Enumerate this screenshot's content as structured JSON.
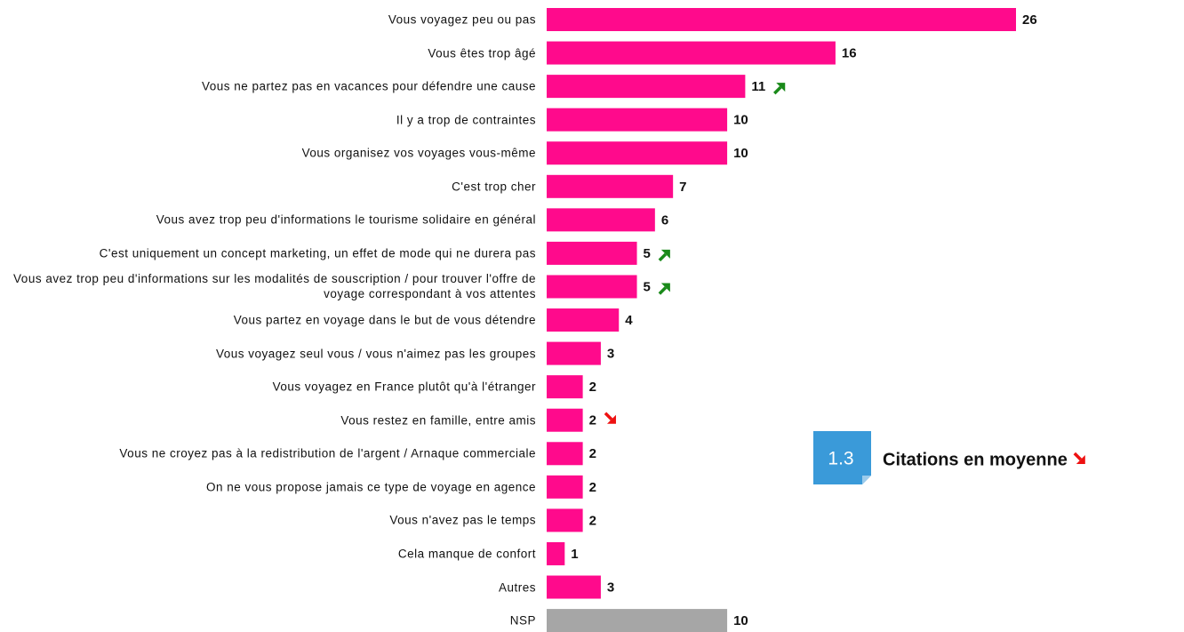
{
  "chart_data": {
    "type": "bar",
    "orientation": "horizontal",
    "categories": [
      "Vous voyagez peu ou pas",
      "Vous êtes trop âgé",
      "Vous ne partez pas en vacances pour défendre une cause",
      "Il y a trop de contraintes",
      "Vous organisez vos voyages vous-même",
      "C'est trop cher",
      "Vous avez trop peu d'informations le tourisme solidaire en général",
      "C'est uniquement un concept marketing, un effet de mode qui ne durera pas",
      "Vous avez trop peu d'informations sur les modalités de souscription / pour trouver l'offre de voyage correspondant à vos attentes",
      "Vous partez en voyage dans le but de vous détendre",
      "Vous voyagez seul vous / vous n'aimez pas les groupes",
      "Vous voyagez en France plutôt qu'à l'étranger",
      "Vous restez en famille, entre amis",
      "Vous ne croyez pas à la redistribution de l'argent / Arnaque commerciale",
      "On ne vous propose jamais ce type de voyage en agence",
      "Vous n'avez pas le temps",
      "Cela manque de confort",
      "Autres",
      "NSP"
    ],
    "values": [
      26,
      16,
      11,
      10,
      10,
      7,
      6,
      5,
      5,
      4,
      3,
      2,
      2,
      2,
      2,
      2,
      1,
      3,
      10
    ],
    "colors": [
      "#ff0a8c",
      "#ff0a8c",
      "#ff0a8c",
      "#ff0a8c",
      "#ff0a8c",
      "#ff0a8c",
      "#ff0a8c",
      "#ff0a8c",
      "#ff0a8c",
      "#ff0a8c",
      "#ff0a8c",
      "#ff0a8c",
      "#ff0a8c",
      "#ff0a8c",
      "#ff0a8c",
      "#ff0a8c",
      "#ff0a8c",
      "#ff0a8c",
      "#a6a6a6"
    ],
    "trends": [
      null,
      null,
      "up",
      null,
      null,
      null,
      null,
      "up",
      "up",
      null,
      null,
      null,
      "down",
      null,
      null,
      null,
      null,
      null,
      null
    ],
    "annotation": {
      "value": 1.3,
      "label": "Citations en moyenne",
      "trend": "down",
      "color": "#3a9ad9"
    }
  }
}
